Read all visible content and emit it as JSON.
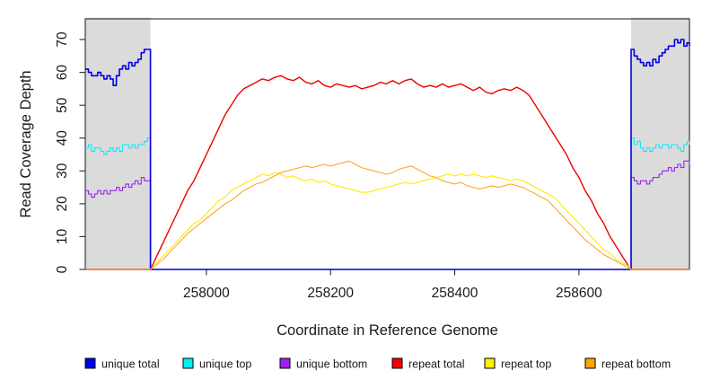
{
  "chart_data": {
    "type": "line",
    "title": "",
    "xlabel": "Coordinate in Reference Genome",
    "ylabel": "Read Coverage Depth",
    "xlim": [
      257805,
      258778
    ],
    "ylim": [
      0,
      76.3
    ],
    "x_ticks": [
      258000,
      258200,
      258400,
      258600
    ],
    "y_ticks": [
      0,
      10,
      20,
      30,
      40,
      50,
      60,
      70
    ],
    "grid": false,
    "legend_position": "bottom",
    "shaded_regions": [
      {
        "x0": 257805,
        "x1": 257910,
        "color": "#DBDBDB"
      },
      {
        "x0": 258684,
        "x1": 258778,
        "color": "#DBDBDB"
      }
    ],
    "series": [
      {
        "name": "unique top",
        "color": "#00EEFF",
        "width": 1.1,
        "step": true,
        "segments": [
          {
            "x0": 257805,
            "dx": 5,
            "values": [
              37,
              38,
              36,
              37,
              37,
              36,
              35,
              36,
              37,
              36,
              37,
              36,
              38,
              38,
              37,
              38,
              37,
              38,
              38,
              39,
              40,
              40
            ]
          },
          {
            "points": [
              [
                257910,
                0
              ],
              [
                258684,
                0
              ],
              [
                258684,
                40
              ]
            ]
          },
          {
            "x0": 258689,
            "dx": 5,
            "values": [
              38,
              39,
              37,
              36,
              37,
              36,
              37,
              38,
              37,
              38,
              38,
              37,
              38,
              38,
              37,
              36,
              38,
              39
            ]
          },
          {
            "points": [
              [
                258778,
                38
              ]
            ]
          }
        ]
      },
      {
        "name": "unique bottom",
        "color": "#A020F0",
        "width": 1.1,
        "step": true,
        "segments": [
          {
            "x0": 257805,
            "dx": 5,
            "values": [
              24,
              23,
              22,
              23,
              24,
              23,
              24,
              23,
              24,
              24,
              25,
              24,
              25,
              26,
              25,
              26,
              27,
              26,
              28,
              27,
              27,
              27
            ]
          },
          {
            "points": [
              [
                257910,
                0
              ],
              [
                258684,
                0
              ],
              [
                258684,
                28
              ]
            ]
          },
          {
            "x0": 258689,
            "dx": 5,
            "values": [
              27,
              26,
              27,
              27,
              26,
              27,
              28,
              28,
              29,
              30,
              30,
              31,
              30,
              31,
              32,
              31,
              33,
              33
            ]
          },
          {
            "points": [
              [
                258778,
                32
              ]
            ]
          }
        ]
      },
      {
        "name": "unique total",
        "color": "#0000E6",
        "width": 1.6,
        "step": true,
        "segments": [
          {
            "x0": 257805,
            "dx": 5,
            "values": [
              61,
              60,
              59,
              59,
              60,
              59,
              58,
              59,
              58,
              56,
              59,
              61,
              62,
              61,
              63,
              62,
              63,
              64,
              66,
              67,
              67,
              66
            ]
          },
          {
            "points": [
              [
                257910,
                0
              ],
              [
                258684,
                0
              ],
              [
                258684,
                67
              ]
            ]
          },
          {
            "x0": 258689,
            "dx": 5,
            "values": [
              65,
              64,
              63,
              62,
              63,
              62,
              64,
              63,
              65,
              66,
              67,
              68,
              68,
              70,
              69,
              70,
              68,
              69
            ]
          },
          {
            "points": [
              [
                258778,
                68
              ]
            ]
          }
        ]
      },
      {
        "name": "repeat total",
        "color": "#EE0000",
        "width": 1.4,
        "step": false,
        "segments": [
          {
            "points": [
              [
                257805,
                0
              ],
              [
                257910,
                0
              ]
            ]
          },
          {
            "x0": 257910,
            "dx": 10,
            "values": [
              0,
              4,
              8,
              12,
              16,
              20,
              24,
              27,
              31,
              35,
              39,
              43,
              47,
              50,
              53,
              55,
              56,
              57,
              58,
              57.5,
              58.5,
              59,
              58,
              57.5,
              58.5,
              57,
              56.5,
              57.5,
              56,
              55.5,
              56.5,
              56,
              55.5,
              56,
              55,
              55.5,
              56,
              57,
              56.5,
              57.5,
              56.5,
              57.5,
              58,
              56.5,
              55.5,
              56,
              55.5,
              56.5,
              55.5,
              56,
              56.5,
              55.5,
              54.5,
              55.5,
              54,
              53.5,
              54.5,
              55,
              54.5,
              55.5,
              54.5,
              53,
              50,
              47,
              44,
              41,
              38,
              35,
              31,
              28,
              24,
              21,
              17,
              14,
              10,
              7,
              4,
              1
            ]
          },
          {
            "points": [
              [
                258684,
                0
              ],
              [
                258778,
                0
              ]
            ]
          }
        ]
      },
      {
        "name": "repeat top",
        "color": "#FFEA00",
        "width": 1.1,
        "step": false,
        "segments": [
          {
            "points": [
              [
                257805,
                0
              ],
              [
                257910,
                0
              ]
            ]
          },
          {
            "x0": 257910,
            "dx": 10,
            "values": [
              0,
              2,
              4,
              6,
              8,
              10,
              12,
              14,
              15,
              17,
              19,
              21,
              22,
              24,
              25,
              26,
              27,
              28,
              29,
              28.5,
              29.5,
              29,
              28,
              28.5,
              27.5,
              27,
              27.5,
              26.5,
              27,
              26,
              25.5,
              25,
              24.5,
              24,
              23.5,
              23.5,
              24,
              24.5,
              25,
              25.5,
              26,
              26.5,
              26,
              26.5,
              27,
              27.5,
              28,
              28.5,
              29,
              28.5,
              29,
              28.5,
              29,
              28.5,
              28,
              28.5,
              28,
              27.5,
              27,
              27.5,
              27,
              26,
              25,
              24,
              23,
              22,
              20,
              18,
              16,
              14,
              12,
              10,
              8,
              6,
              5,
              3,
              2,
              1
            ]
          },
          {
            "points": [
              [
                258684,
                0
              ],
              [
                258778,
                0
              ]
            ]
          }
        ]
      },
      {
        "name": "repeat bottom",
        "color": "#FFA428",
        "width": 1.1,
        "step": false,
        "segments": [
          {
            "points": [
              [
                257805,
                0
              ],
              [
                257910,
                0
              ]
            ]
          },
          {
            "x0": 257910,
            "dx": 10,
            "values": [
              0,
              1.5,
              3,
              5,
              7,
              9,
              11,
              12.5,
              14,
              15.5,
              17,
              18.5,
              20,
              21,
              22.5,
              24,
              25,
              26,
              26.5,
              27.5,
              28.5,
              29.5,
              30,
              30.5,
              31,
              31.5,
              31,
              31.5,
              32,
              31.5,
              32,
              32.5,
              33,
              32,
              31,
              30.5,
              30,
              29.5,
              29,
              29.5,
              30.5,
              31,
              31.5,
              30.5,
              29.5,
              28.5,
              28,
              27,
              26.5,
              26,
              26.5,
              25.5,
              25,
              24.5,
              25,
              25.5,
              25,
              25.5,
              26,
              25.5,
              25,
              24,
              23,
              22,
              21,
              19,
              17,
              15,
              13,
              11,
              9,
              7.5,
              6,
              4.5,
              3.5,
              2.5,
              1.5,
              0.5
            ]
          },
          {
            "points": [
              [
                258684,
                0
              ],
              [
                258778,
                0
              ]
            ]
          }
        ]
      }
    ],
    "legend": {
      "items": [
        {
          "label": "unique total",
          "color": "#0000E6",
          "swatch": "#0000EE"
        },
        {
          "label": "unique top",
          "color": "#00EEFF",
          "swatch": "#00F0F0"
        },
        {
          "label": "unique bottom",
          "color": "#A020F0",
          "swatch": "#A020F0"
        },
        {
          "label": "repeat total",
          "color": "#EE0000",
          "swatch": "#F40000"
        },
        {
          "label": "repeat top",
          "color": "#FFEA00",
          "swatch": "#FFF000"
        },
        {
          "label": "repeat bottom",
          "color": "#FFA428",
          "swatch": "#FFA500"
        }
      ]
    }
  }
}
